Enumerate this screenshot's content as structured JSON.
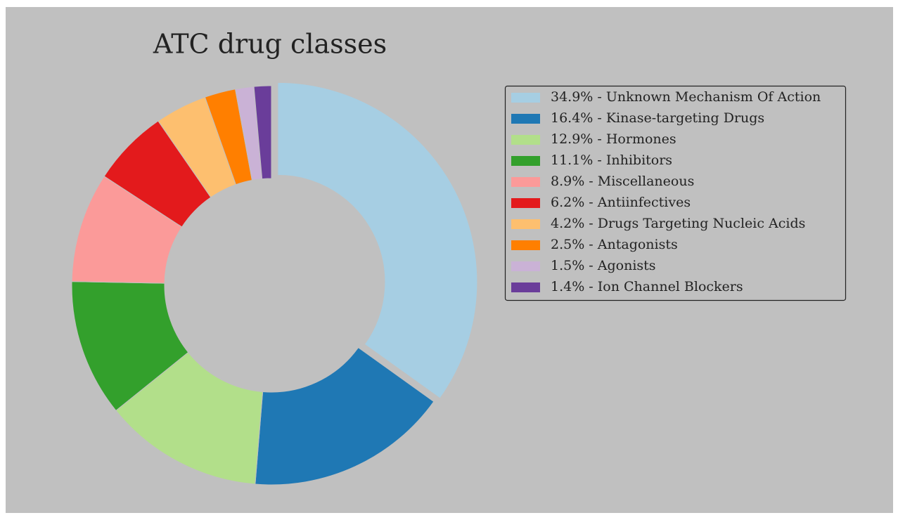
{
  "chart_data": {
    "type": "donut",
    "title": "ATC drug classes",
    "categories": [
      "34.9% - Unknown Mechanism Of Action",
      "16.4% - Kinase-targeting Drugs",
      "12.9% - Hormones",
      "11.1% - Inhibitors",
      "8.9% - Miscellaneous",
      "6.2% - Antiinfectives",
      "4.2% - Drugs Targeting Nucleic Acids",
      "2.5% - Antagonists",
      "1.5% - Agonists",
      "1.4% - Ion Channel Blockers"
    ],
    "values": [
      34.9,
      16.4,
      12.9,
      11.1,
      8.9,
      6.2,
      4.2,
      2.5,
      1.5,
      1.4
    ],
    "colors": [
      "#a6cee3",
      "#1f78b4",
      "#b2df8a",
      "#33a02c",
      "#fb9a99",
      "#e31a1c",
      "#fdbf6f",
      "#ff7f00",
      "#cab2d6",
      "#6a3d9a"
    ],
    "legend": "upper right"
  }
}
